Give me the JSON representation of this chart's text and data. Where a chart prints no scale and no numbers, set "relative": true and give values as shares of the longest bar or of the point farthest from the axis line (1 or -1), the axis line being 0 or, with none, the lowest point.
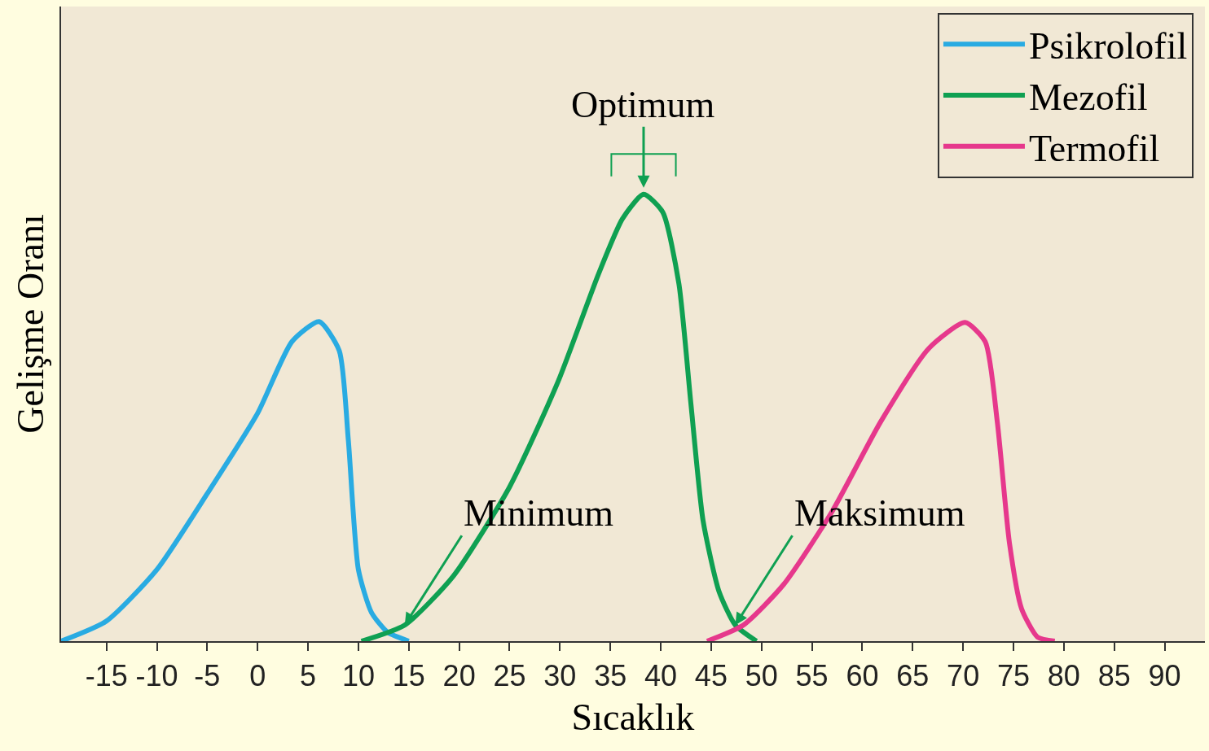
{
  "chart_data": {
    "type": "line",
    "relative": true,
    "xlabel": "Sıcaklık",
    "ylabel": "Gelişme Oranı",
    "xlim": [
      -19.5,
      94
    ],
    "xticks": [
      -15,
      -10,
      -5,
      0,
      5,
      10,
      15,
      20,
      25,
      30,
      35,
      40,
      45,
      50,
      55,
      60,
      65,
      70,
      75,
      80,
      85,
      90
    ],
    "grid": false,
    "legend": "top right",
    "marker": "none",
    "line_style": "solid",
    "series": [
      {
        "name": "Psikrolofil",
        "color": "#29abe2",
        "x": [
          -19.5,
          -15,
          -10,
          -5,
          0,
          3.4,
          6.1,
          8.1,
          9,
          10,
          11.3,
          12.9,
          15
        ],
        "values": [
          0,
          0.045,
          0.16,
          0.33,
          0.51,
          0.67,
          0.715,
          0.65,
          0.45,
          0.16,
          0.064,
          0.02,
          0
        ]
      },
      {
        "name": "Mezofil",
        "color": "#0fa052",
        "x": [
          10.3,
          14.6,
          19.4,
          25,
          29.8,
          33.8,
          36.2,
          38.3,
          40.2,
          41.8,
          43,
          44.2,
          45.8,
          47.4,
          49.5
        ],
        "values": [
          0,
          0.036,
          0.145,
          0.345,
          0.58,
          0.82,
          0.945,
          1,
          0.96,
          0.8,
          0.53,
          0.27,
          0.11,
          0.036,
          0
        ]
      },
      {
        "name": "Termofil",
        "color": "#e6388c",
        "x": [
          44.6,
          48.2,
          52.2,
          57,
          61.8,
          66.6,
          70.2,
          72.2,
          73.4,
          74.6,
          75.8,
          77.4,
          79.1
        ],
        "values": [
          0,
          0.036,
          0.127,
          0.29,
          0.49,
          0.655,
          0.713,
          0.67,
          0.49,
          0.22,
          0.073,
          0.009,
          0
        ]
      }
    ],
    "annotations": [
      {
        "text": "Optimum",
        "x": 38.3,
        "y": 1
      },
      {
        "text": "Minimum",
        "x": 14.6,
        "y": 0.036
      },
      {
        "text": "Maksimum",
        "x": 47.4,
        "y": 0.036
      }
    ]
  }
}
